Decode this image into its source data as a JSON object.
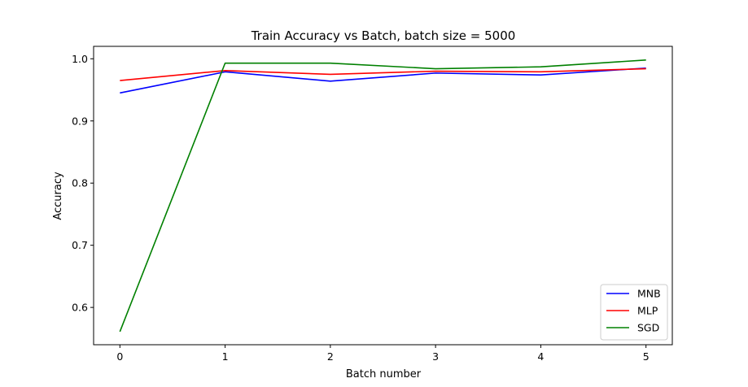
{
  "chart_data": {
    "type": "line",
    "title": "Train Accuracy vs Batch, batch size = 5000",
    "xlabel": "Batch number",
    "ylabel": "Accuracy",
    "x": [
      0,
      1,
      2,
      3,
      4,
      5
    ],
    "xlim": [
      -0.25,
      5.25
    ],
    "ylim": [
      0.54,
      1.02
    ],
    "xticks": [
      "0",
      "1",
      "2",
      "3",
      "4",
      "5"
    ],
    "yticks": [
      "0.6",
      "0.7",
      "0.8",
      "0.9",
      "1.0"
    ],
    "grid": false,
    "legend_position": "lower-right",
    "series": [
      {
        "name": "MNB",
        "color": "#0000ff",
        "values": [
          0.945,
          0.979,
          0.964,
          0.977,
          0.974,
          0.985
        ]
      },
      {
        "name": "MLP",
        "color": "#ff0000",
        "values": [
          0.965,
          0.981,
          0.975,
          0.98,
          0.979,
          0.984
        ]
      },
      {
        "name": "SGD",
        "color": "#008000",
        "values": [
          0.561,
          0.993,
          0.993,
          0.984,
          0.987,
          0.998
        ]
      }
    ]
  }
}
